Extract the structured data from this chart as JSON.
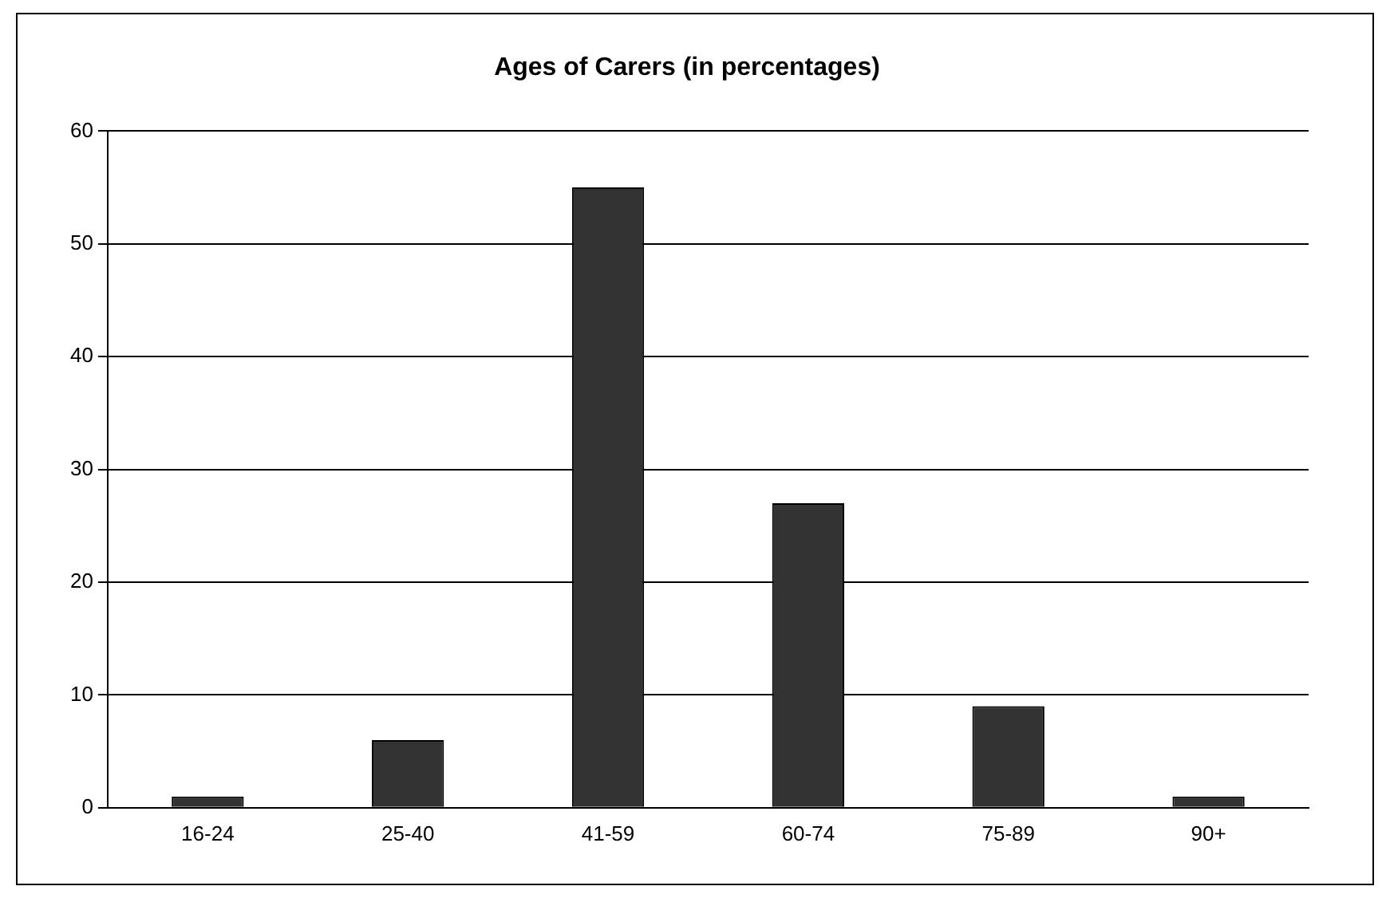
{
  "chart_data": {
    "type": "bar",
    "title": "Ages of Carers (in percentages)",
    "categories": [
      "16-24",
      "25-40",
      "41-59",
      "60-74",
      "75-89",
      "90+"
    ],
    "values": [
      1,
      6,
      55,
      27,
      9,
      1
    ],
    "color": "#333333",
    "ylim": [
      0,
      60
    ],
    "yticks": [
      0,
      10,
      20,
      30,
      40,
      50,
      60
    ],
    "grid": "y",
    "legend": false
  }
}
